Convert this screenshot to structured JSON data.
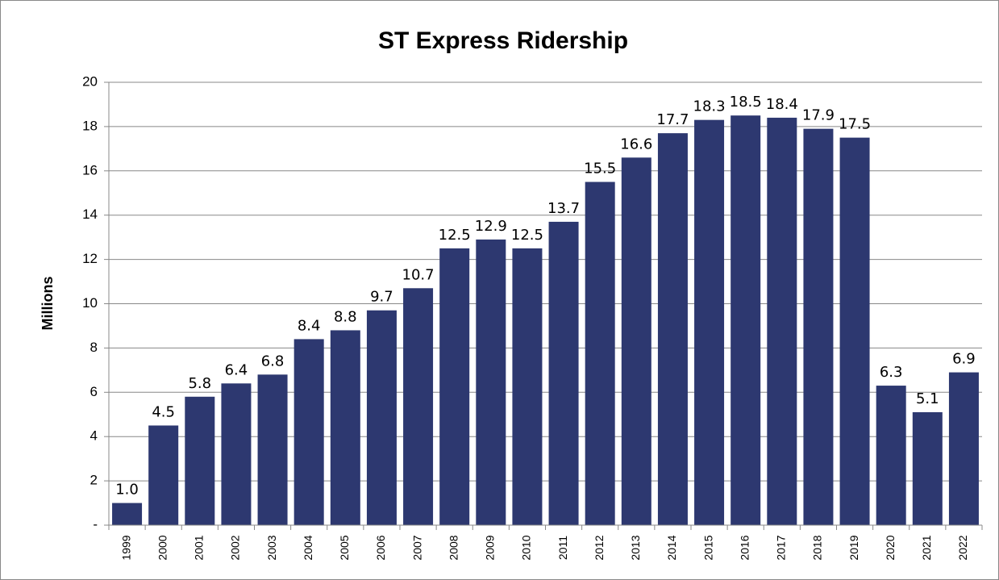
{
  "chart_data": {
    "type": "bar",
    "title": "ST Express Ridership",
    "y_label": "Millions",
    "categories": [
      "1999",
      "2000",
      "2001",
      "2002",
      "2003",
      "2004",
      "2005",
      "2006",
      "2007",
      "2008",
      "2009",
      "2010",
      "2011",
      "2012",
      "2013",
      "2014",
      "2015",
      "2016",
      "2017",
      "2018",
      "2019",
      "2020",
      "2021",
      "2022"
    ],
    "values": [
      1.0,
      4.5,
      5.8,
      6.4,
      6.8,
      8.4,
      8.8,
      9.7,
      10.7,
      12.5,
      12.9,
      12.5,
      13.7,
      15.5,
      16.6,
      17.7,
      18.3,
      18.5,
      18.4,
      17.9,
      17.5,
      6.3,
      5.1,
      6.9
    ],
    "value_labels": [
      "1.0",
      "4.5",
      "5.8",
      "6.4",
      "6.8",
      "8.4",
      "8.8",
      "9.7",
      "10.7",
      "12.5",
      "12.9",
      "12.5",
      "13.7",
      "15.5",
      "16.6",
      "17.7",
      "18.3",
      "18.5",
      "18.4",
      "17.9",
      "17.5",
      "6.3",
      "5.1",
      "6.9"
    ],
    "color": "#2d3870",
    "ylim": [
      0,
      20
    ],
    "yticks": [
      {
        "value": 0,
        "label": "-"
      },
      2,
      4,
      6,
      8,
      10,
      12,
      14,
      16,
      18,
      20
    ],
    "grid": true
  }
}
